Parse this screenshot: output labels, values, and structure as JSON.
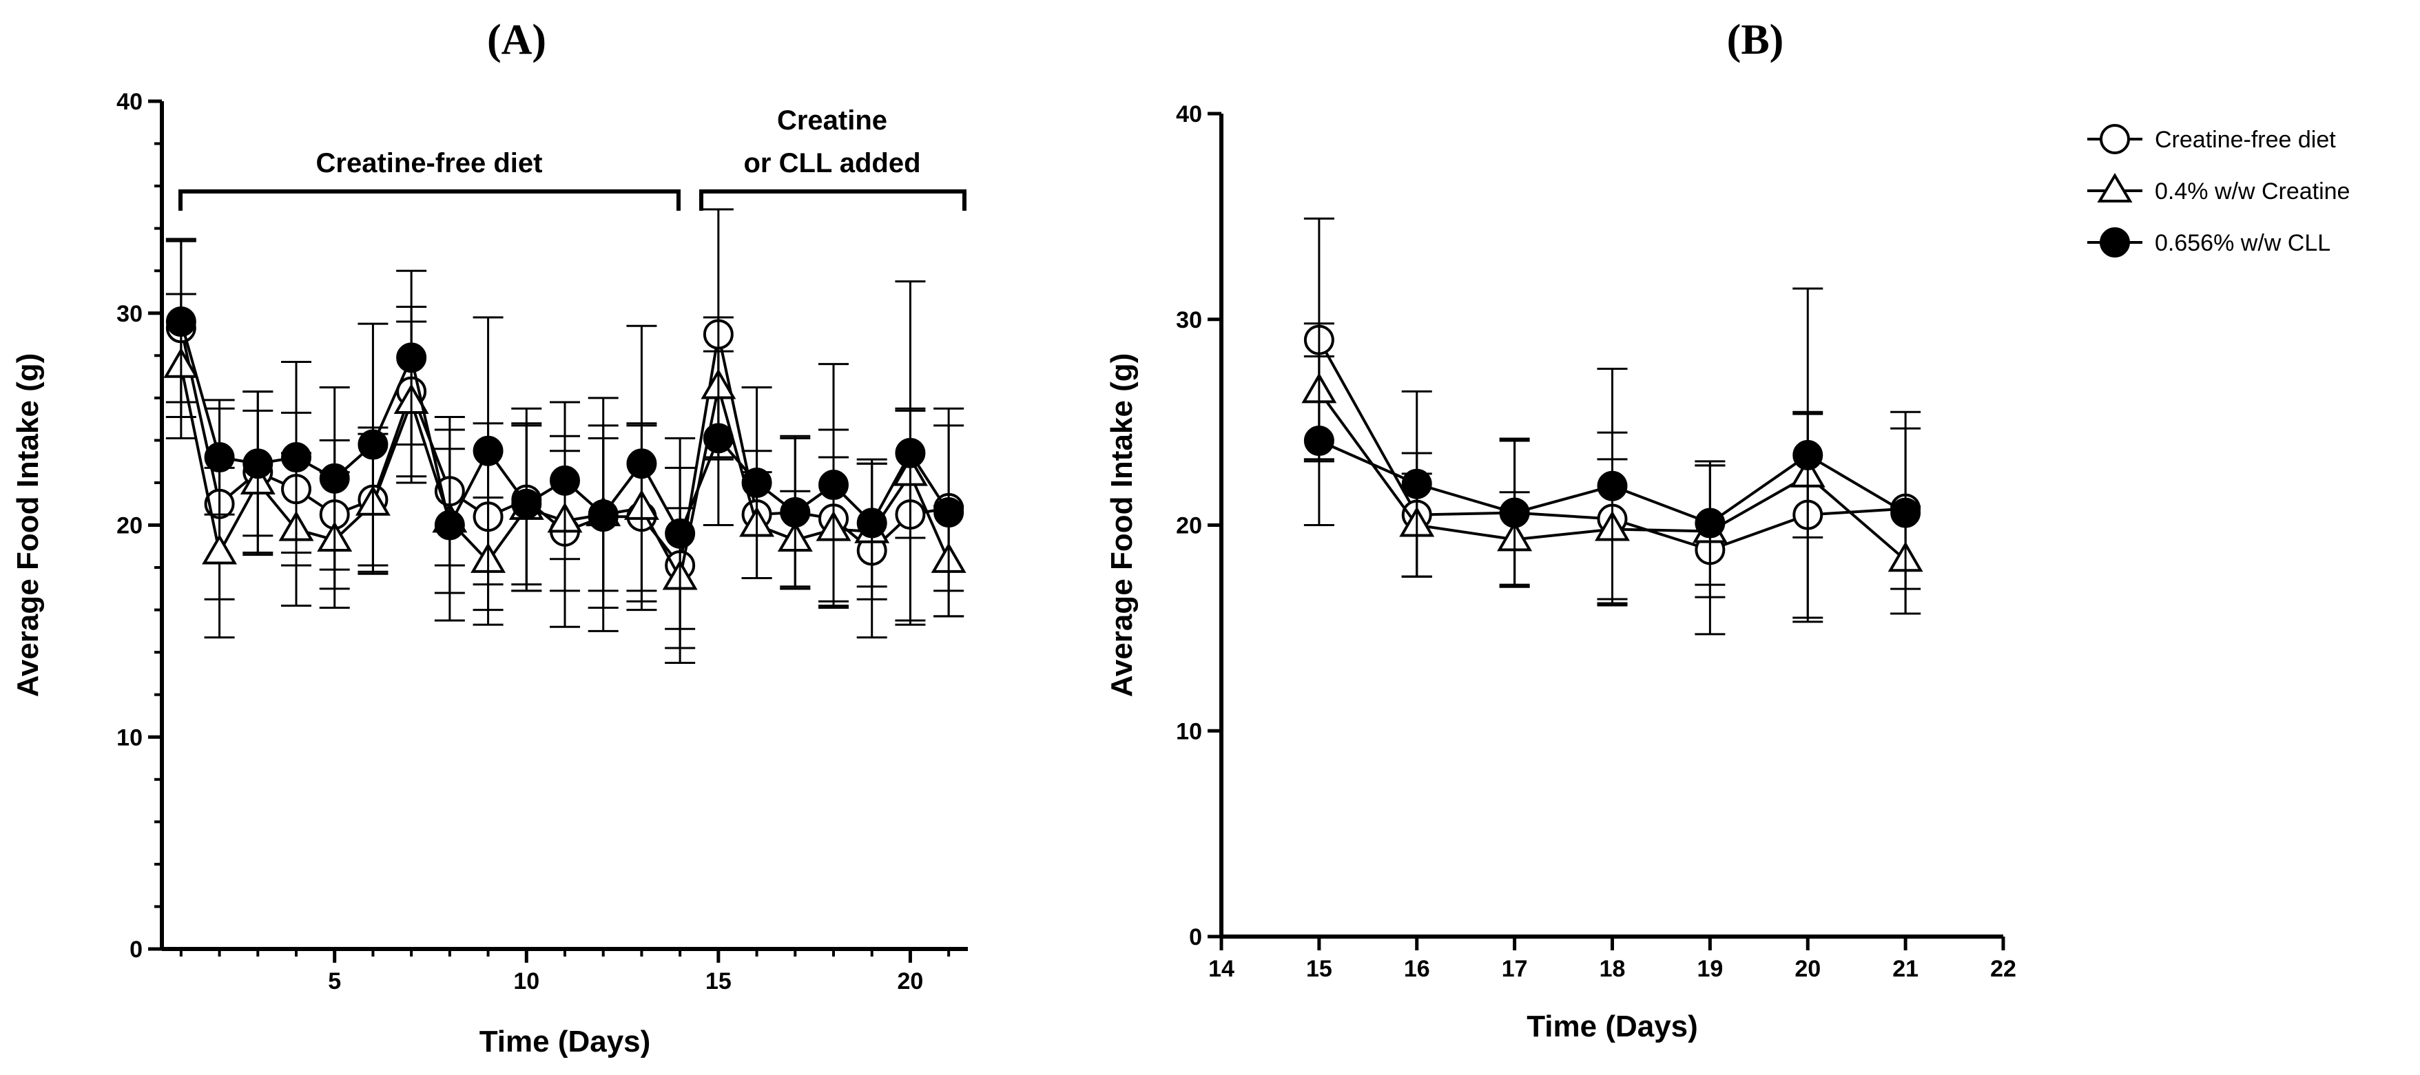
{
  "panels": {
    "a_label": "(A)",
    "b_label": "(B)"
  },
  "annotations": {
    "period1": "Creatine-free diet",
    "period2_line1": "Creatine",
    "period2_line2": "or CLL added"
  },
  "legend": [
    {
      "label": "Creatine-free diet",
      "marker": "open-circle"
    },
    {
      "label": "0.4% w/w Creatine",
      "marker": "open-triangle"
    },
    {
      "label": "0.656% w/w CLL",
      "marker": "filled-circle"
    }
  ],
  "chart_data": [
    {
      "type": "line",
      "panel": "A",
      "xlabel": "Time (Days)",
      "ylabel": "Average Food Intake (g)",
      "xlim": [
        0.5,
        21.5
      ],
      "ylim": [
        0,
        40
      ],
      "xticks": [
        5,
        10,
        15,
        20
      ],
      "yticks": [
        0,
        10,
        20,
        30,
        40
      ],
      "grid": false,
      "x": [
        1,
        2,
        3,
        4,
        5,
        6,
        7,
        8,
        9,
        10,
        11,
        12,
        13,
        14,
        15,
        16,
        17,
        18,
        19,
        20,
        21
      ],
      "series": [
        {
          "name": "Creatine-free diet",
          "marker": "open-circle",
          "values": [
            29.3,
            21.0,
            22.5,
            21.7,
            20.5,
            21.2,
            26.3,
            21.6,
            20.4,
            21.2,
            19.7,
            20.4,
            20.4,
            18.1,
            29.0,
            20.5,
            20.6,
            20.3,
            18.8,
            20.5,
            20.8
          ],
          "errors": [
            4.2,
            4.5,
            3.8,
            3.6,
            3.5,
            3.4,
            4.0,
            3.5,
            4.4,
            4.3,
            4.5,
            4.3,
            4.4,
            4.6,
            5.9,
            3.0,
            3.6,
            4.2,
            4.1,
            5.0,
            3.9
          ]
        },
        {
          "name": "0.4% w/w Creatine",
          "marker": "open-triangle",
          "values": [
            27.5,
            18.7,
            22.0,
            19.8,
            19.3,
            21.0,
            25.8,
            20.2,
            18.3,
            20.8,
            20.2,
            20.5,
            20.8,
            17.5,
            26.5,
            20.0,
            19.3,
            19.8,
            19.7,
            22.4,
            18.3
          ],
          "errors": [
            3.4,
            4.0,
            3.4,
            3.6,
            3.2,
            3.3,
            3.8,
            3.4,
            3.0,
            3.9,
            3.3,
            3.6,
            3.9,
            3.3,
            3.3,
            2.5,
            2.3,
            3.4,
            3.2,
            3.0,
            2.6
          ]
        },
        {
          "name": "0.656% w/w CLL",
          "marker": "filled-circle",
          "values": [
            29.6,
            23.2,
            22.9,
            23.2,
            22.2,
            23.8,
            27.9,
            20.0,
            23.5,
            21.0,
            22.1,
            20.5,
            22.9,
            19.6,
            24.1,
            22.0,
            20.6,
            21.9,
            20.1,
            23.4,
            20.6
          ],
          "errors": [
            3.8,
            2.7,
            3.4,
            4.5,
            4.3,
            5.7,
            4.1,
            4.5,
            6.3,
            3.8,
            3.7,
            5.5,
            6.5,
            4.5,
            4.1,
            4.5,
            3.5,
            5.7,
            3.0,
            8.1,
            4.9
          ]
        }
      ]
    },
    {
      "type": "line",
      "panel": "B",
      "xlabel": "Time (Days)",
      "ylabel": "Average Food Intake (g)",
      "xlim": [
        14,
        22
      ],
      "ylim": [
        0,
        40
      ],
      "xticks": [
        14,
        15,
        16,
        17,
        18,
        19,
        20,
        21,
        22
      ],
      "yticks": [
        0,
        10,
        20,
        30,
        40
      ],
      "grid": false,
      "legend_position": "top-right",
      "x": [
        15,
        16,
        17,
        18,
        19,
        20,
        21
      ],
      "series": [
        {
          "name": "Creatine-free diet",
          "marker": "open-circle",
          "values": [
            29.0,
            20.5,
            20.6,
            20.3,
            18.8,
            20.5,
            20.8
          ],
          "errors": [
            5.9,
            3.0,
            3.6,
            4.2,
            4.1,
            5.0,
            3.9
          ]
        },
        {
          "name": "0.4% w/w Creatine",
          "marker": "open-triangle",
          "values": [
            26.5,
            20.0,
            19.3,
            19.8,
            19.7,
            22.4,
            18.3
          ],
          "errors": [
            3.3,
            2.5,
            2.3,
            3.4,
            3.2,
            3.0,
            2.6
          ]
        },
        {
          "name": "0.656% w/w CLL",
          "marker": "filled-circle",
          "values": [
            24.1,
            22.0,
            20.6,
            21.9,
            20.1,
            23.4,
            20.6
          ],
          "errors": [
            4.1,
            4.5,
            3.5,
            5.7,
            3.0,
            8.1,
            4.9
          ]
        }
      ]
    }
  ]
}
